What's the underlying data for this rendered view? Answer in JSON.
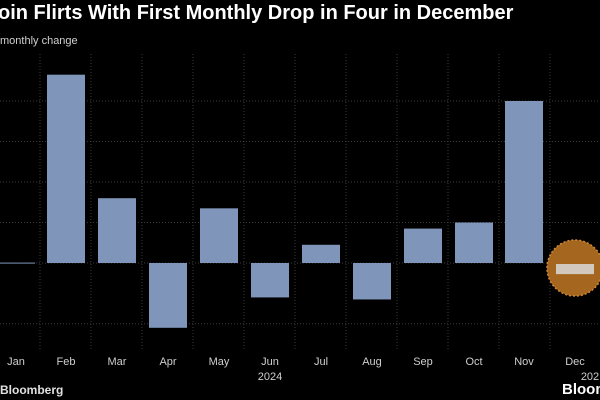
{
  "title": "oin Flirts With First Monthly Drop in Four in December",
  "subtitle": "monthly change",
  "source": "Bloomberg",
  "brand": "Bloom",
  "colors": {
    "background": "#000000",
    "bar": "#7f95b9",
    "highlight": "#a5661f",
    "highlight_stroke": "#d08a36",
    "grid": "#3a3a3a"
  },
  "chart_data": {
    "type": "bar",
    "categories": [
      "Jan",
      "Feb",
      "Mar",
      "Apr",
      "May",
      "Jun",
      "Jul",
      "Aug",
      "Sep",
      "Oct",
      "Nov",
      "Dec"
    ],
    "year_labels": [
      "2024",
      "202"
    ],
    "values": [
      0.1,
      46.5,
      16.0,
      -16.0,
      13.5,
      -8.5,
      4.5,
      -9.0,
      8.5,
      10.0,
      40.0,
      -2.5
    ],
    "highlight_index": 11,
    "title": "oin Flirts With First Monthly Drop in Four in December",
    "subtitle": "monthly change",
    "xlabel": "",
    "ylabel": "",
    "ylim": [
      -22,
      50
    ],
    "grid": true,
    "legend": "none"
  }
}
